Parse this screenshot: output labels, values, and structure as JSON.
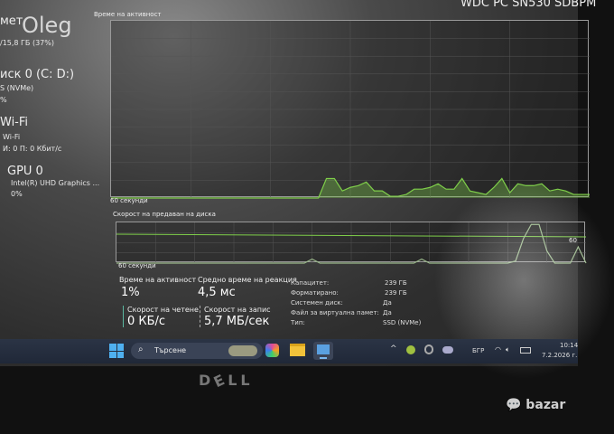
{
  "sidebar": {
    "memory": {
      "title_fragment": "мет",
      "overlay": "Oleg",
      "detail": "/15,8 ГБ (37%)"
    },
    "disk": {
      "title": "иск 0 (C: D:)",
      "type": "S (NVMe)",
      "usage": "%"
    },
    "wifi": {
      "title": "Wi-Fi",
      "name": "Wi-Fi",
      "speed": "И: 0 П: 0 Кбит/с"
    },
    "gpu": {
      "title": "GPU 0",
      "name": "Intel(R) UHD Graphics ...",
      "usage": "0%"
    }
  },
  "header": {
    "device_name": "WDC PC SN530 SDBPM"
  },
  "activity_chart": {
    "label": "Време на активност",
    "time_label": "60 секунди"
  },
  "transfer_chart": {
    "label": "Скорост на предаван на диска",
    "time_label": "60 секунди",
    "right_label": "60"
  },
  "chart_data": [
    {
      "type": "area",
      "title": "Време на активност",
      "xlabel": "60 секунди",
      "ylim": [
        0,
        100
      ],
      "color": "#7fcf4a",
      "values": [
        0,
        0,
        0,
        0,
        0,
        0,
        0,
        0,
        0,
        0,
        0,
        0,
        0,
        0,
        0,
        0,
        0,
        0,
        0,
        0,
        0,
        0,
        0,
        0,
        0,
        0,
        0,
        11,
        11,
        4,
        6,
        7,
        9,
        4,
        4,
        1,
        1,
        2,
        5,
        5,
        6,
        8,
        5,
        5,
        11,
        4,
        3,
        2,
        6,
        11,
        3,
        8,
        7,
        7,
        8,
        4,
        5,
        4,
        2,
        2,
        2
      ]
    },
    {
      "type": "line",
      "title": "Скорост на предаван на диска",
      "xlabel": "60 секунди",
      "ylim": [
        0,
        100
      ],
      "color": "#7fcf4a",
      "series": [
        {
          "values": [
            0,
            0,
            0,
            0,
            0,
            0,
            0,
            0,
            0,
            0,
            0,
            0,
            0,
            0,
            0,
            0,
            0,
            0,
            0,
            0,
            0,
            0,
            0,
            0,
            0,
            10,
            0,
            0,
            0,
            0,
            0,
            0,
            0,
            0,
            0,
            0,
            0,
            0,
            0,
            10,
            0,
            0,
            0,
            0,
            0,
            0,
            0,
            0,
            0,
            0,
            0,
            5,
            60,
            95,
            95,
            30,
            0,
            0,
            0,
            40,
            0
          ]
        }
      ]
    }
  ],
  "stats": {
    "active_time": {
      "label": "Време на активност",
      "value": "1%"
    },
    "response_time": {
      "label": "Средно време на реакция",
      "value": "4,5 мс"
    },
    "read_speed": {
      "label": "Скорост на четене",
      "value": "0 КБ/с"
    },
    "write_speed": {
      "label": "Скорост на запис",
      "value": "5,7 МБ/сек"
    }
  },
  "properties": [
    {
      "label": "Капацитет:",
      "value": "239 ГБ"
    },
    {
      "label": "Форматирано:",
      "value": "239 ГБ"
    },
    {
      "label": "Системен диск:",
      "value": "Да"
    },
    {
      "label": "Файл за виртуална памет:",
      "value": "Да"
    },
    {
      "label": "Тип:",
      "value": "SSD (NVMe)"
    }
  ],
  "taskbar": {
    "search_placeholder": "Търсене",
    "language": "БГР",
    "time": "10:14",
    "date": "7.2.2026 г."
  },
  "bezel": {
    "logo": "DELL",
    "watermark": "bazar"
  }
}
